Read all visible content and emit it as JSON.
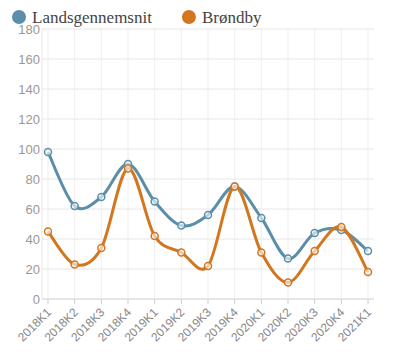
{
  "chart_data": {
    "type": "line",
    "categories": [
      "2018K1",
      "2018K2",
      "2018K3",
      "2018K4",
      "2019K1",
      "2019K2",
      "2019K3",
      "2019K4",
      "2020K1",
      "2020K2",
      "2020K3",
      "2020K4",
      "2021K1"
    ],
    "series": [
      {
        "name": "Landsgennemsnit",
        "color": "#5b8ea8",
        "values": [
          98,
          62,
          68,
          90,
          65,
          49,
          56,
          75,
          54,
          27,
          44,
          46,
          32
        ]
      },
      {
        "name": "Brøndby",
        "color": "#d2761f",
        "values": [
          45,
          23,
          34,
          87,
          42,
          31,
          22,
          75,
          31,
          11,
          32,
          48,
          18
        ]
      }
    ],
    "ylim": [
      0,
      180
    ],
    "yticks": [
      0,
      20,
      40,
      60,
      80,
      100,
      120,
      140,
      160,
      180
    ],
    "grid": true,
    "legend": "top",
    "marker": "circle",
    "line_style": "smooth"
  }
}
